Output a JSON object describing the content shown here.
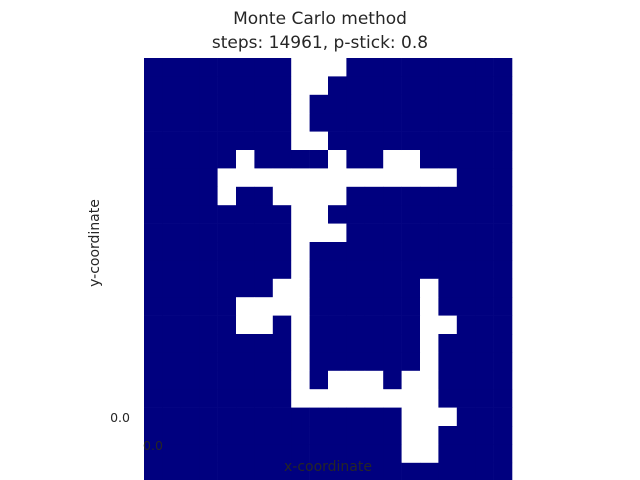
{
  "chart_data": {
    "type": "heatmap",
    "title_lines": [
      "Monte Carlo method",
      "steps: 14961, p-stick: 0.8"
    ],
    "xlabel": "x-coordinate",
    "ylabel": "y-coordinate",
    "x_tick_label": "0.0",
    "y_tick_label": "0.0",
    "grid": false,
    "colors": {
      "occupied": "#00007f",
      "empty": "#ffffff"
    },
    "cell_legend": {
      "1": "occupied",
      "0": "empty"
    },
    "rows": [
      "11111111000111111111",
      "11111111001111111111",
      "11111111011111111111",
      "11111111011111111111",
      "11111111001111111111",
      "11111011110110011111",
      "11110000000000000111",
      "11110110000111111111",
      "11111111001111111111",
      "11111111000111111111",
      "11111111011111111111",
      "11111111011111111111",
      "11111110011111101111",
      "11111000011111101111",
      "11111001011111100111",
      "11111111011111101111",
      "11111111011111101111",
      "11111111010001001111",
      "11111111000000001111",
      "11111111111111000111",
      "11111111111111001111",
      "11111111111111001111",
      "11111111111111111111"
    ]
  }
}
